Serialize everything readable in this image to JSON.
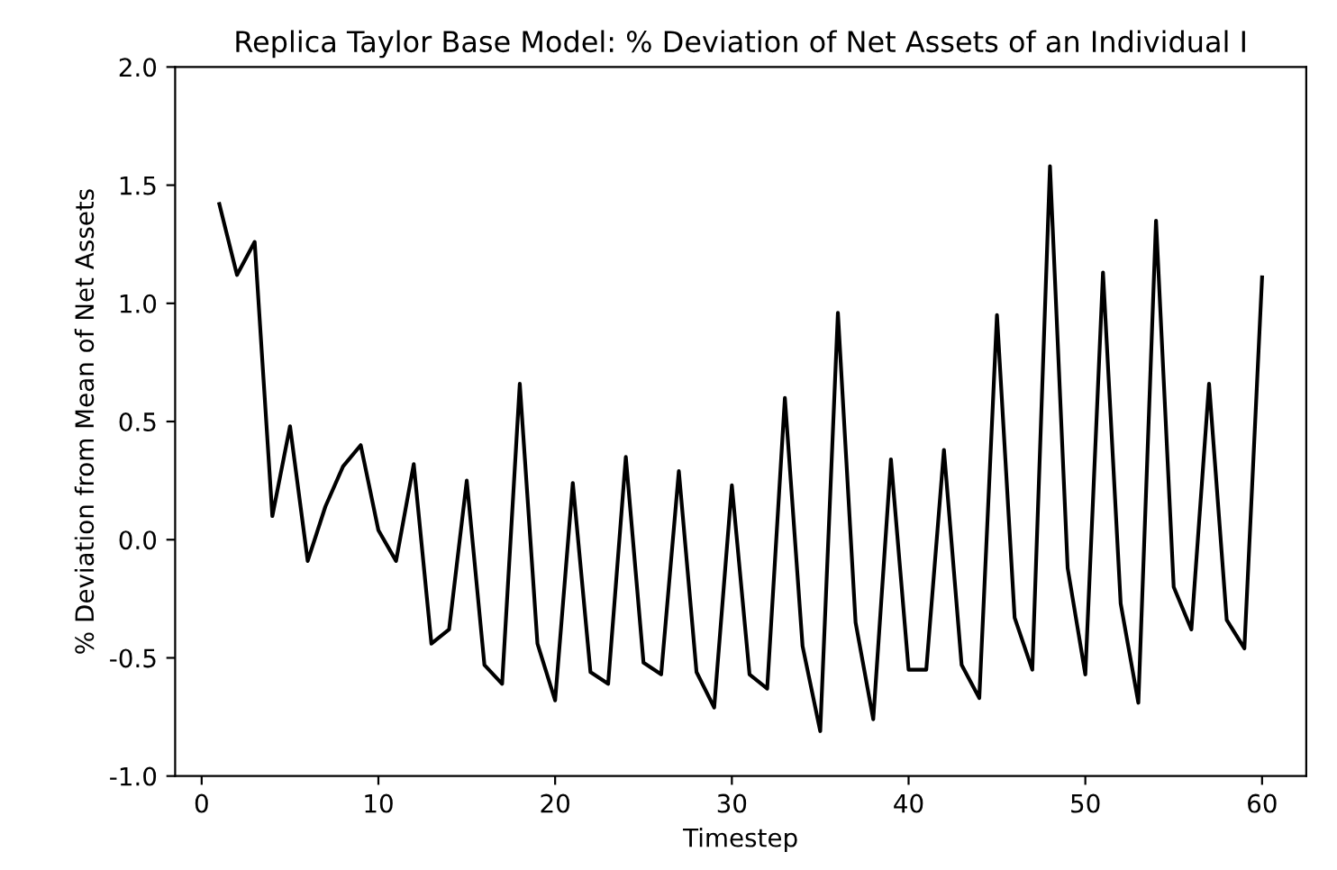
{
  "chart_data": {
    "type": "line",
    "title": "Replica Taylor Base Model: % Deviation of Net Assets of an Individual I",
    "xlabel": "Timestep",
    "ylabel": "% Deviation from Mean of Net Assets",
    "x": [
      1,
      2,
      3,
      4,
      5,
      6,
      7,
      8,
      9,
      10,
      11,
      12,
      13,
      14,
      15,
      16,
      17,
      18,
      19,
      20,
      21,
      22,
      23,
      24,
      25,
      26,
      27,
      28,
      29,
      30,
      31,
      32,
      33,
      34,
      35,
      36,
      37,
      38,
      39,
      40,
      41,
      42,
      43,
      44,
      45,
      46,
      47,
      48,
      49,
      50,
      51,
      52,
      53,
      54,
      55,
      56,
      57,
      58,
      59,
      60
    ],
    "series": [
      {
        "color": "#000000",
        "values": [
          1.42,
          1.12,
          1.26,
          0.1,
          0.48,
          -0.09,
          0.14,
          0.31,
          0.4,
          0.04,
          -0.09,
          0.32,
          -0.44,
          -0.38,
          0.25,
          -0.53,
          -0.61,
          0.66,
          -0.44,
          -0.68,
          0.24,
          -0.56,
          -0.61,
          0.35,
          -0.52,
          -0.57,
          0.29,
          -0.56,
          -0.71,
          0.23,
          -0.57,
          -0.63,
          0.6,
          -0.45,
          -0.81,
          0.96,
          -0.35,
          -0.76,
          0.34,
          -0.55,
          -0.55,
          0.38,
          -0.53,
          -0.67,
          0.95,
          -0.33,
          -0.55,
          1.58,
          -0.12,
          -0.57,
          1.13,
          -0.27,
          -0.69,
          1.35,
          -0.2,
          -0.38,
          0.66,
          -0.34,
          -0.46,
          1.11
        ]
      }
    ],
    "xlim": [
      -1.5,
      62.5
    ],
    "ylim": [
      -1.0,
      2.0
    ],
    "xticks": [
      0,
      10,
      20,
      30,
      40,
      50,
      60
    ],
    "yticks": [
      {
        "value": -1,
        "label": "-1.0"
      },
      -0.5,
      {
        "value": 0,
        "label": "0.0"
      },
      0.5,
      {
        "value": 1,
        "label": "1.0"
      },
      1.5,
      {
        "value": 2,
        "label": "2.0"
      }
    ],
    "grid": false,
    "legend": false,
    "marker": "none",
    "line_style": "solid"
  }
}
